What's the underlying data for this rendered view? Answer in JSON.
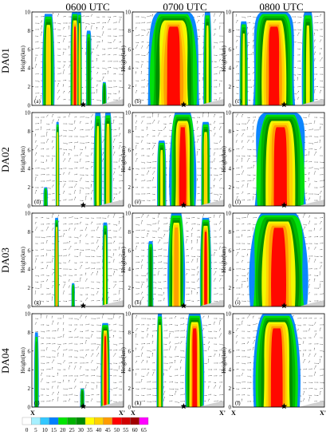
{
  "chart_data": {
    "type": "heatmap",
    "columns": [
      "0600 UTC",
      "0700 UTC",
      "0800 UTC"
    ],
    "rows": [
      "DA01",
      "DA02",
      "DA03",
      "DA04"
    ],
    "ylabel": "Height(km)",
    "yticks": [
      0,
      2,
      4,
      6,
      8,
      10
    ],
    "ylim": [
      0,
      10
    ],
    "x_start_label": "X",
    "x_end_label": "X'",
    "colorbar": {
      "ticks": [
        0,
        5,
        10,
        15,
        20,
        25,
        30,
        35,
        40,
        45,
        50,
        55,
        60,
        65
      ],
      "colors": [
        "#ffffff",
        "#a6f0ff",
        "#33c8ff",
        "#0080ff",
        "#00e600",
        "#00b300",
        "#008a00",
        "#ffff00",
        "#ffd200",
        "#ff9c00",
        "#ff0000",
        "#d20000",
        "#a00000",
        "#ff00ff"
      ]
    },
    "panels": [
      {
        "label": "(a)",
        "row": 0,
        "col": 0,
        "cores": [
          {
            "x": 0.18,
            "w": 0.13,
            "top": 9.8,
            "max": 44
          },
          {
            "x": 0.47,
            "w": 0.1,
            "top": 10,
            "max": 52
          },
          {
            "x": 0.52,
            "w": 0.05,
            "top": 10,
            "max": 40
          },
          {
            "x": 0.62,
            "w": 0.06,
            "top": 8,
            "max": 33
          },
          {
            "x": 0.79,
            "w": 0.05,
            "top": 2.5,
            "max": 32
          }
        ]
      },
      {
        "label": "(b)",
        "row": 0,
        "col": 1,
        "cores": [
          {
            "x": 0.45,
            "w": 0.56,
            "top": 10,
            "max": 52
          },
          {
            "x": 0.82,
            "w": 0.09,
            "top": 10,
            "max": 36
          }
        ]
      },
      {
        "label": "(c)",
        "row": 0,
        "col": 2,
        "cores": [
          {
            "x": 0.12,
            "w": 0.09,
            "top": 9,
            "max": 36
          },
          {
            "x": 0.45,
            "w": 0.46,
            "top": 10,
            "max": 52
          },
          {
            "x": 0.82,
            "w": 0.13,
            "top": 10,
            "max": 38
          }
        ]
      },
      {
        "label": "(d)",
        "row": 1,
        "col": 0,
        "cores": [
          {
            "x": 0.28,
            "w": 0.04,
            "top": 9,
            "max": 42
          },
          {
            "x": 0.72,
            "w": 0.09,
            "top": 10,
            "max": 38
          },
          {
            "x": 0.83,
            "w": 0.09,
            "top": 10,
            "max": 40
          },
          {
            "x": 0.15,
            "w": 0.05,
            "top": 2,
            "max": 28
          }
        ]
      },
      {
        "label": "(e)",
        "row": 1,
        "col": 1,
        "cores": [
          {
            "x": 0.32,
            "w": 0.1,
            "top": 7,
            "max": 37
          },
          {
            "x": 0.55,
            "w": 0.28,
            "top": 10,
            "max": 52
          },
          {
            "x": 0.8,
            "w": 0.1,
            "top": 9,
            "max": 40
          }
        ]
      },
      {
        "label": "(f)",
        "row": 1,
        "col": 2,
        "cores": [
          {
            "x": 0.52,
            "w": 0.56,
            "top": 10,
            "max": 52
          }
        ]
      },
      {
        "label": "(g)",
        "row": 2,
        "col": 0,
        "cores": [
          {
            "x": 0.27,
            "w": 0.05,
            "top": 9.5,
            "max": 47
          },
          {
            "x": 0.8,
            "w": 0.06,
            "top": 9,
            "max": 37
          },
          {
            "x": 0.45,
            "w": 0.04,
            "top": 2.5,
            "max": 29
          }
        ]
      },
      {
        "label": "(h)",
        "row": 2,
        "col": 1,
        "cores": [
          {
            "x": 0.2,
            "w": 0.06,
            "top": 7,
            "max": 34
          },
          {
            "x": 0.48,
            "w": 0.18,
            "top": 10,
            "max": 46
          },
          {
            "x": 0.8,
            "w": 0.12,
            "top": 9.5,
            "max": 52
          }
        ]
      },
      {
        "label": "(i)",
        "row": 2,
        "col": 2,
        "cores": [
          {
            "x": 0.5,
            "w": 0.62,
            "top": 10,
            "max": 52
          }
        ]
      },
      {
        "label": "(j)",
        "row": 3,
        "col": 0,
        "cores": [
          {
            "x": 0.05,
            "w": 0.05,
            "top": 8,
            "max": 26
          },
          {
            "x": 0.8,
            "w": 0.1,
            "top": 9,
            "max": 52
          },
          {
            "x": 0.55,
            "w": 0.05,
            "top": 2,
            "max": 30
          }
        ]
      },
      {
        "label": "(k)",
        "row": 3,
        "col": 1,
        "cores": [
          {
            "x": 0.3,
            "w": 0.07,
            "top": 10,
            "max": 40
          },
          {
            "x": 0.68,
            "w": 0.2,
            "top": 10,
            "max": 52
          }
        ]
      },
      {
        "label": "(l)",
        "row": 3,
        "col": 2,
        "cores": [
          {
            "x": 0.48,
            "w": 0.5,
            "top": 10,
            "max": 52
          }
        ]
      }
    ]
  }
}
